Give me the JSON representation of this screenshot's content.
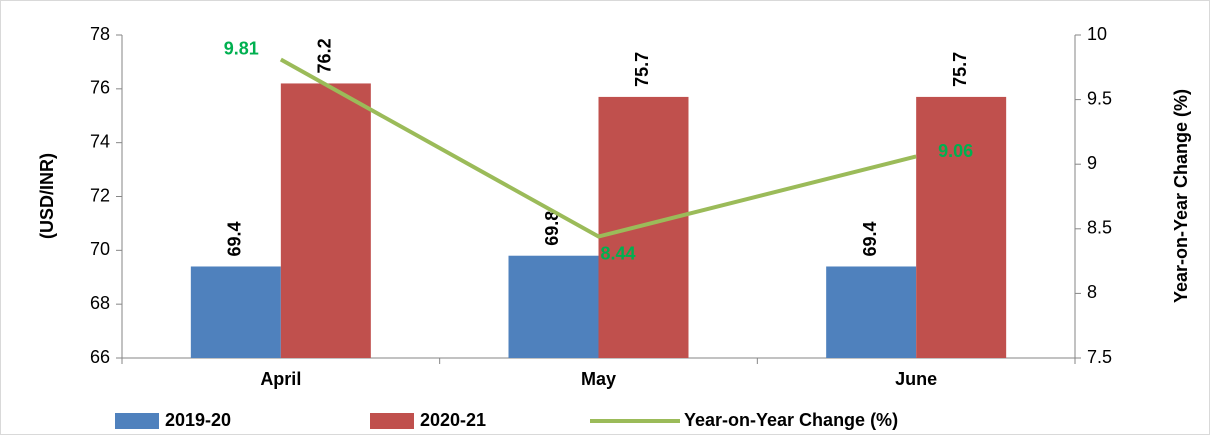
{
  "chart_data": {
    "type": "bar",
    "categories": [
      "April",
      "May",
      "June"
    ],
    "series": [
      {
        "name": "2019-20",
        "color": "#4f81bd",
        "values": [
          69.4,
          69.8,
          69.4
        ]
      },
      {
        "name": "2020-21",
        "color": "#c0504d",
        "values": [
          76.2,
          75.7,
          75.7
        ]
      },
      {
        "name": "Year-on-Year Change (%)",
        "type": "line",
        "axis": "y2",
        "color": "#9bbb59",
        "values": [
          9.81,
          8.44,
          9.06
        ]
      }
    ],
    "y_label": "(USD/INR)",
    "y2_label": "Year-on-Year Change (%)",
    "ylim": [
      66,
      78
    ],
    "yticks": [
      66,
      68,
      70,
      72,
      74,
      76,
      78
    ],
    "y2lim": [
      7.5,
      10
    ],
    "y2ticks": [
      7.5,
      8,
      8.5,
      9,
      9.5,
      10
    ],
    "label_color": "#00b050",
    "grid": false,
    "legend": "bottom"
  }
}
